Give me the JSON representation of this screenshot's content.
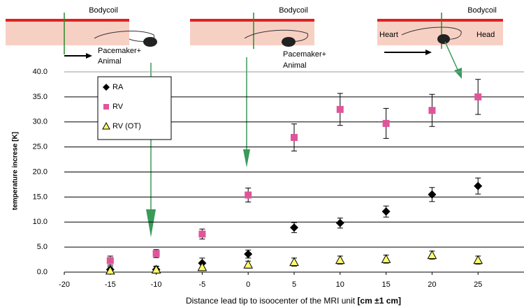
{
  "chart_data": {
    "type": "scatter",
    "x_label": "Distance lead tip to isoocenter of the MRI unit",
    "x_label_unit": "[cm ±1 cm]",
    "y_label": "temperature increse [K]",
    "annotations": [
      "Bodycoil",
      "Pacemaker+",
      "Animal",
      "Bodycoil",
      "Pacemaker+",
      "Animal",
      "Bodycoil",
      "Heart",
      "Head"
    ],
    "xlim": [
      -20,
      30
    ],
    "xticks": [
      -20,
      -15,
      -10,
      -5,
      0,
      5,
      10,
      15,
      20,
      25
    ],
    "ylim": [
      0,
      40
    ],
    "yticks": [
      {
        "value": 0,
        "label": "0.0"
      },
      {
        "value": 5,
        "label": "5.0"
      },
      {
        "value": 10,
        "label": "10.0"
      },
      {
        "value": 15,
        "label": "15.0"
      },
      {
        "value": 20,
        "label": "20.0"
      },
      {
        "value": 25,
        "label": "25.0"
      },
      {
        "value": 30,
        "label": "30.0"
      },
      {
        "value": 35,
        "label": "35.0"
      },
      {
        "value": 40,
        "label": "40.0"
      }
    ],
    "grid": true,
    "legend": "upper left",
    "series": [
      {
        "name": "RA",
        "marker": "diamond",
        "color": "#000000",
        "x": [
          -15,
          -10,
          -5,
          0,
          5,
          10,
          15,
          20,
          25
        ],
        "values": [
          0.5,
          0.5,
          1.8,
          3.6,
          8.9,
          9.8,
          12.1,
          15.5,
          17.2
        ],
        "errors": [
          0.6,
          0.6,
          1.0,
          0.8,
          1.0,
          1.0,
          1.1,
          1.4,
          1.6
        ]
      },
      {
        "name": "RV",
        "marker": "square",
        "color": "#e0559a",
        "x": [
          -15,
          -10,
          -5,
          0,
          5,
          10,
          15,
          20,
          25
        ],
        "values": [
          2.3,
          3.7,
          7.6,
          15.4,
          26.9,
          32.5,
          29.7,
          32.3,
          35.0
        ],
        "errors": [
          0.9,
          0.8,
          1.0,
          1.4,
          2.7,
          3.2,
          3.0,
          3.2,
          3.5
        ]
      },
      {
        "name": "RV (OT)",
        "marker": "triangle",
        "color": "#ffff66",
        "x": [
          -15,
          -10,
          -5,
          0,
          5,
          10,
          15,
          20,
          25
        ],
        "values": [
          0.3,
          0.5,
          1.0,
          1.5,
          2.0,
          2.4,
          2.6,
          3.4,
          2.4
        ],
        "errors": [
          0.5,
          0.7,
          0.7,
          0.7,
          0.8,
          0.8,
          0.8,
          0.8,
          0.8
        ]
      }
    ]
  }
}
